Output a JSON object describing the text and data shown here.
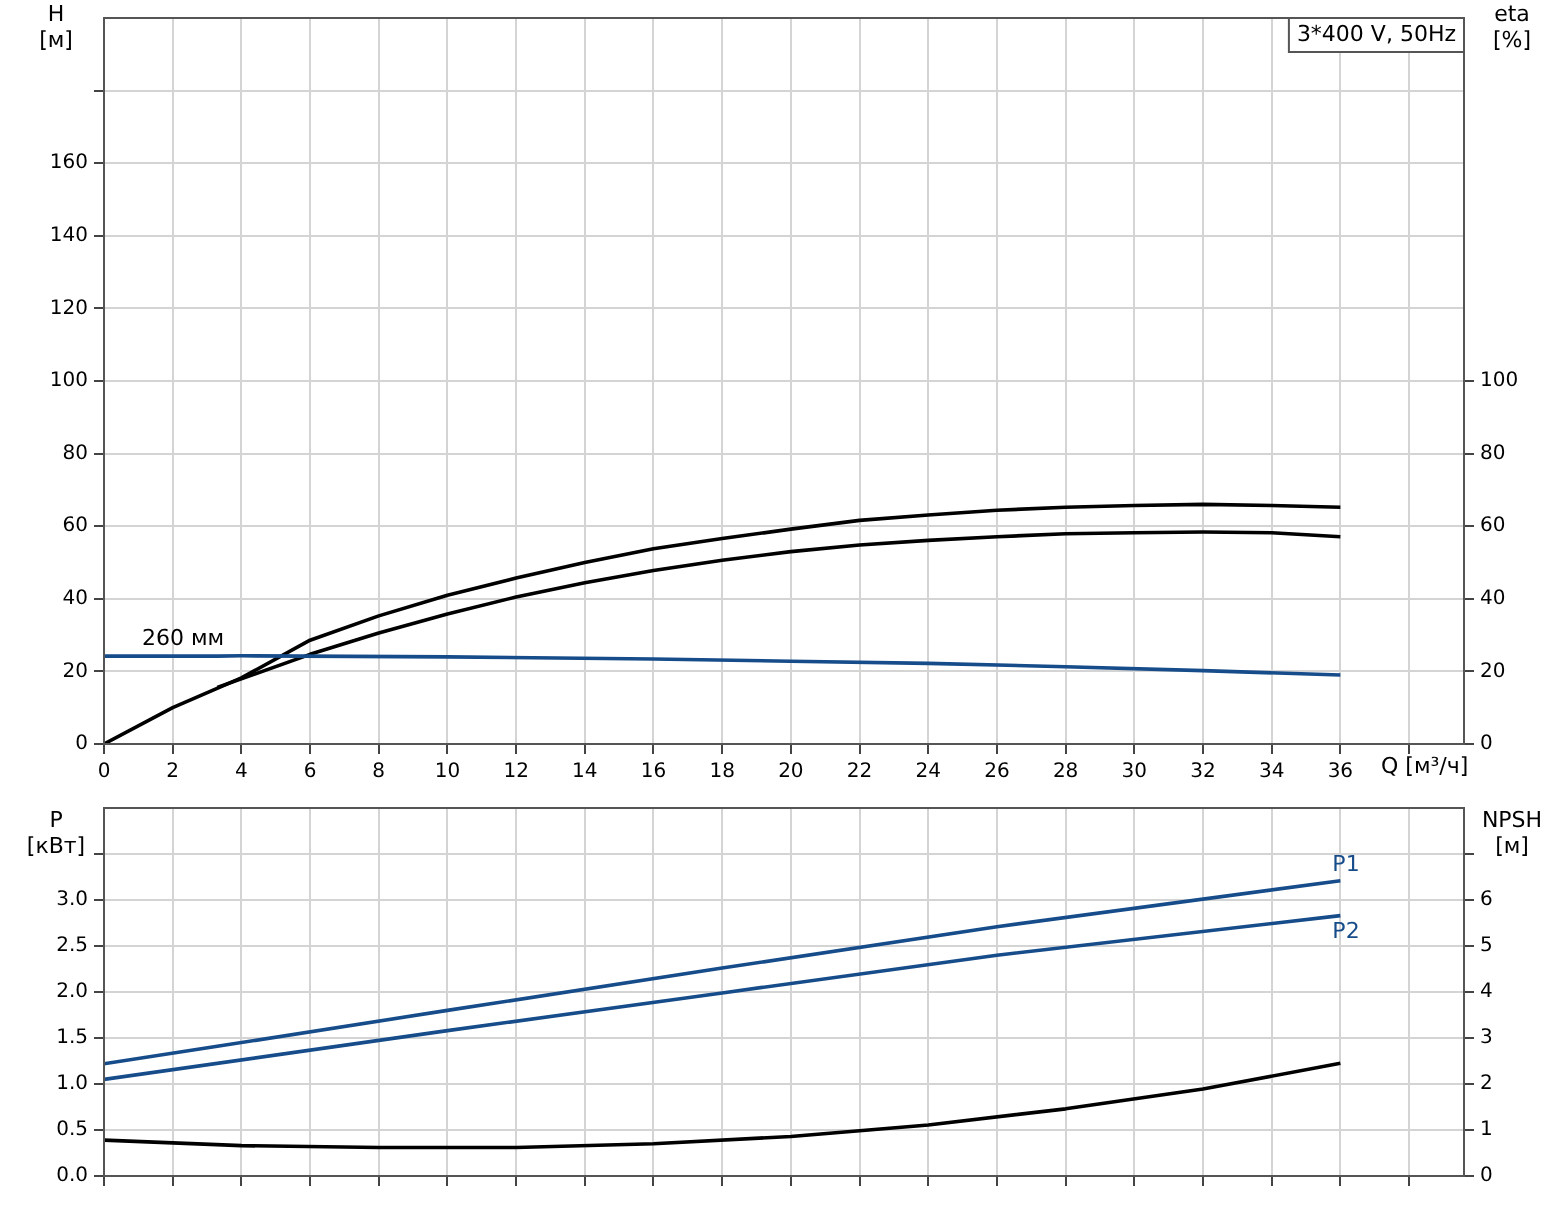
{
  "chart_data": [
    {
      "type": "line",
      "title": "3*400 V, 50Hz",
      "xlabel": "Q [м³/ч]",
      "ylabel": "H [м]",
      "y2label": "eta [%]",
      "grid": true,
      "legend": false,
      "marker": "none",
      "line_style": "solid",
      "xlim": [
        0,
        39.6
      ],
      "xticks": [
        0,
        2,
        4,
        6,
        8,
        10,
        12,
        14,
        16,
        18,
        20,
        22,
        24,
        26,
        28,
        30,
        32,
        34,
        36,
        {
          "value": 38,
          "label": null
        }
      ],
      "ylim": [
        0,
        200
      ],
      "yticks": [
        0,
        20,
        40,
        60,
        80,
        100,
        120,
        140,
        160,
        {
          "value": 180,
          "label": null
        }
      ],
      "y2lim": [
        0,
        200
      ],
      "y2ticks": [
        0,
        20,
        40,
        60,
        80,
        100
      ],
      "annotations": [
        {
          "text": "260 мм",
          "x": 3.5,
          "y": 24.2
        }
      ],
      "series": [
        {
          "color": "#164c8a",
          "x": [
            0,
            3.3,
            4,
            10,
            16,
            20,
            24,
            28,
            32,
            36
          ],
          "values": [
            24.2,
            24.2,
            24.3,
            24.0,
            23.4,
            22.8,
            22.2,
            21.3,
            20.2,
            19.0
          ]
        },
        {
          "color": "#000000",
          "axis": "y2",
          "x": [
            0,
            2,
            4,
            6,
            8,
            10,
            12,
            14,
            16,
            18,
            20,
            22,
            24,
            26,
            28,
            30,
            32,
            34,
            36
          ],
          "values": [
            0,
            10,
            18.2,
            28.6,
            35.3,
            41,
            45.7,
            50,
            53.8,
            56.6,
            59.2,
            61.6,
            63.1,
            64.4,
            65.2,
            65.7,
            66,
            65.7,
            65.2
          ]
        },
        {
          "color": "#000000",
          "axis": "y2",
          "x": [
            3.3,
            6,
            8,
            10,
            12,
            14,
            16,
            18,
            20,
            22,
            24,
            26,
            28,
            30,
            32,
            34,
            36
          ],
          "values": [
            15.6,
            24.7,
            30.6,
            35.8,
            40.5,
            44.4,
            47.8,
            50.6,
            53,
            54.8,
            56.1,
            57.1,
            57.9,
            58.2,
            58.4,
            58.2,
            57.1
          ]
        }
      ]
    },
    {
      "type": "line",
      "ylabel": "P [кВт]",
      "y2label": "NPSH [м]",
      "grid": true,
      "legend": false,
      "marker": "none",
      "line_style": "solid",
      "tick_labels": "y",
      "xlim": [
        0,
        39.6
      ],
      "xticks": [
        0,
        2,
        4,
        6,
        8,
        10,
        12,
        14,
        16,
        18,
        20,
        22,
        24,
        26,
        28,
        30,
        32,
        34,
        36,
        38
      ],
      "ylim": [
        0,
        4
      ],
      "yticks": [
        {
          "value": 0,
          "label": "0.0"
        },
        0.5,
        {
          "value": 1,
          "label": "1.0"
        },
        1.5,
        {
          "value": 2,
          "label": "2.0"
        },
        2.5,
        {
          "value": 3,
          "label": "3.0"
        },
        {
          "value": 3.5,
          "label": null
        }
      ],
      "y2lim": [
        0,
        8
      ],
      "y2ticks": [
        0,
        1,
        2,
        3,
        4,
        5,
        6,
        {
          "value": 7,
          "label": null
        }
      ],
      "series": [
        {
          "name": "P1",
          "color": "#164c8a",
          "x": [
            0,
            3.3,
            10,
            18,
            26,
            36
          ],
          "values": [
            1.22,
            1.41,
            1.8,
            2.26,
            2.71,
            3.21
          ]
        },
        {
          "name": "P2",
          "color": "#164c8a",
          "x": [
            0,
            10,
            18,
            26,
            36
          ],
          "values": [
            1.05,
            1.58,
            1.99,
            2.4,
            2.83
          ]
        },
        {
          "color": "#000000",
          "axis": "y2",
          "x": [
            0,
            4,
            8,
            12,
            16,
            20,
            24,
            28,
            32,
            36
          ],
          "values": [
            0.78,
            0.66,
            0.62,
            0.62,
            0.7,
            0.86,
            1.11,
            1.46,
            1.89,
            2.45
          ]
        }
      ]
    }
  ]
}
